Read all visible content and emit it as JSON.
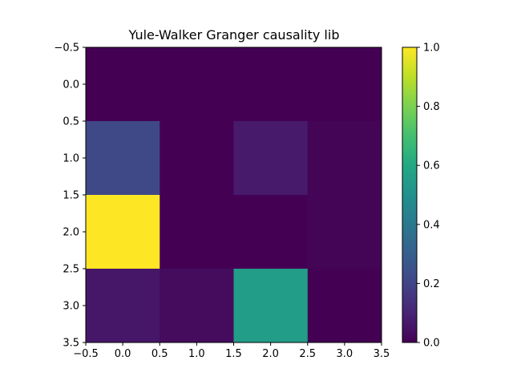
{
  "chart_data": {
    "type": "heatmap",
    "title": "Yule-Walker Granger causality lib",
    "xlabel": "",
    "ylabel": "",
    "x_tick_labels": [
      "−0.5",
      "0.0",
      "0.5",
      "1.0",
      "1.5",
      "2.0",
      "2.5",
      "3.0",
      "3.5"
    ],
    "y_tick_labels": [
      "−0.5",
      "0.0",
      "0.5",
      "1.0",
      "1.5",
      "2.0",
      "2.5",
      "3.0",
      "3.5"
    ],
    "xlim": [
      -0.5,
      3.5
    ],
    "ylim": [
      3.5,
      -0.5
    ],
    "grid": false,
    "colormap": "viridis",
    "clim": [
      0.0,
      1.0
    ],
    "colorbar_tick_labels": [
      "0.0",
      "0.2",
      "0.4",
      "0.6",
      "0.8",
      "1.0"
    ],
    "matrix": [
      [
        0.0,
        0.0,
        0.0,
        0.0
      ],
      [
        0.22,
        0.0,
        0.07,
        0.01
      ],
      [
        1.0,
        0.0,
        0.0,
        0.01
      ],
      [
        0.06,
        0.03,
        0.55,
        0.0
      ]
    ]
  }
}
